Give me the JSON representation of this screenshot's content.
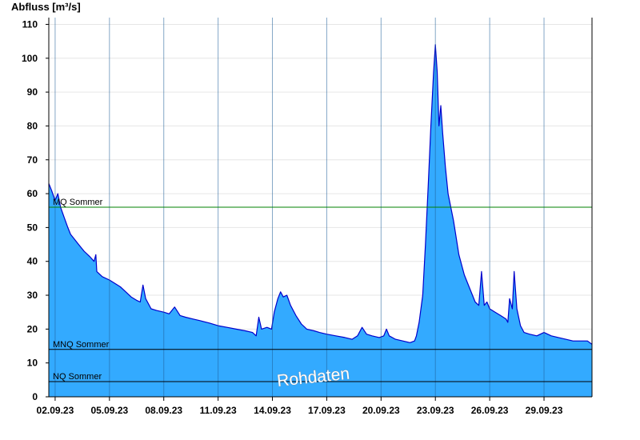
{
  "chart_data": {
    "type": "area",
    "ylabel": "Abfluss [m³/s]",
    "ylim": [
      0,
      112
    ],
    "yticks": [
      0,
      10,
      20,
      30,
      40,
      50,
      60,
      70,
      80,
      90,
      100,
      110
    ],
    "xlim": [
      1.65,
      31.65
    ],
    "xticks": [
      {
        "x": 2,
        "label": "02.09.23"
      },
      {
        "x": 5,
        "label": "05.09.23"
      },
      {
        "x": 8,
        "label": "08.09.23"
      },
      {
        "x": 11,
        "label": "11.09.23"
      },
      {
        "x": 14,
        "label": "14.09.23"
      },
      {
        "x": 17,
        "label": "17.09.23"
      },
      {
        "x": 20,
        "label": "20.09.23"
      },
      {
        "x": 23,
        "label": "23.09.23"
      },
      {
        "x": 26,
        "label": "26.09.23"
      },
      {
        "x": 29,
        "label": "29.09.23"
      }
    ],
    "x_unit": "day of September 2023",
    "series": [
      {
        "values": [
          [
            1.65,
            63
          ],
          [
            1.8,
            61
          ],
          [
            2.0,
            58
          ],
          [
            2.15,
            60
          ],
          [
            2.3,
            56
          ],
          [
            2.5,
            53
          ],
          [
            2.7,
            50
          ],
          [
            2.85,
            48
          ],
          [
            3.0,
            47
          ],
          [
            3.3,
            45
          ],
          [
            3.6,
            43
          ],
          [
            3.9,
            41.5
          ],
          [
            4.15,
            40
          ],
          [
            4.25,
            42
          ],
          [
            4.3,
            37
          ],
          [
            4.6,
            35.5
          ],
          [
            5.0,
            34.5
          ],
          [
            5.3,
            33.5
          ],
          [
            5.6,
            32.5
          ],
          [
            5.9,
            31
          ],
          [
            6.2,
            29.5
          ],
          [
            6.5,
            28.5
          ],
          [
            6.7,
            28
          ],
          [
            6.85,
            33
          ],
          [
            7.0,
            29
          ],
          [
            7.3,
            26
          ],
          [
            7.6,
            25.5
          ],
          [
            8.0,
            25
          ],
          [
            8.3,
            24.5
          ],
          [
            8.6,
            26.5
          ],
          [
            8.9,
            24
          ],
          [
            9.2,
            23.5
          ],
          [
            9.6,
            23
          ],
          [
            10.0,
            22.5
          ],
          [
            10.5,
            21.8
          ],
          [
            11.0,
            21
          ],
          [
            11.5,
            20.5
          ],
          [
            12.0,
            20
          ],
          [
            12.5,
            19.5
          ],
          [
            12.9,
            19
          ],
          [
            13.1,
            18
          ],
          [
            13.25,
            23.5
          ],
          [
            13.4,
            20
          ],
          [
            13.7,
            20.5
          ],
          [
            13.95,
            20
          ],
          [
            14.1,
            25
          ],
          [
            14.3,
            29
          ],
          [
            14.45,
            31
          ],
          [
            14.6,
            29.5
          ],
          [
            14.8,
            30
          ],
          [
            15.0,
            27
          ],
          [
            15.3,
            24
          ],
          [
            15.6,
            21.5
          ],
          [
            15.9,
            20
          ],
          [
            16.3,
            19.5
          ],
          [
            16.6,
            19
          ],
          [
            17.0,
            18.5
          ],
          [
            17.5,
            18
          ],
          [
            18.0,
            17.5
          ],
          [
            18.4,
            17
          ],
          [
            18.7,
            18
          ],
          [
            18.95,
            20.5
          ],
          [
            19.2,
            18.5
          ],
          [
            19.5,
            18
          ],
          [
            19.9,
            17.5
          ],
          [
            20.15,
            18
          ],
          [
            20.3,
            20
          ],
          [
            20.45,
            18
          ],
          [
            20.8,
            17
          ],
          [
            21.2,
            16.5
          ],
          [
            21.6,
            16
          ],
          [
            21.85,
            16.5
          ],
          [
            21.95,
            18
          ],
          [
            22.1,
            22
          ],
          [
            22.3,
            30
          ],
          [
            22.45,
            45
          ],
          [
            22.6,
            62
          ],
          [
            22.75,
            80
          ],
          [
            22.9,
            96
          ],
          [
            23.0,
            104
          ],
          [
            23.1,
            96
          ],
          [
            23.2,
            80
          ],
          [
            23.3,
            86
          ],
          [
            23.4,
            78
          ],
          [
            23.55,
            68
          ],
          [
            23.7,
            60
          ],
          [
            23.85,
            56
          ],
          [
            24.0,
            52
          ],
          [
            24.3,
            42
          ],
          [
            24.6,
            36
          ],
          [
            24.9,
            32
          ],
          [
            25.2,
            28
          ],
          [
            25.4,
            27
          ],
          [
            25.55,
            37
          ],
          [
            25.7,
            27
          ],
          [
            25.85,
            28
          ],
          [
            26.0,
            26
          ],
          [
            26.3,
            25
          ],
          [
            26.6,
            24
          ],
          [
            26.9,
            23
          ],
          [
            27.0,
            22
          ],
          [
            27.1,
            29
          ],
          [
            27.25,
            26
          ],
          [
            27.35,
            37
          ],
          [
            27.5,
            26
          ],
          [
            27.7,
            21
          ],
          [
            27.9,
            19
          ],
          [
            28.2,
            18.5
          ],
          [
            28.6,
            18
          ],
          [
            29.0,
            19
          ],
          [
            29.4,
            18
          ],
          [
            29.8,
            17.5
          ],
          [
            30.2,
            17
          ],
          [
            30.6,
            16.5
          ],
          [
            31.0,
            16.5
          ],
          [
            31.4,
            16.5
          ],
          [
            31.65,
            15.5
          ]
        ]
      }
    ],
    "reference_lines": [
      {
        "label": "MQ Sommer",
        "value": 56,
        "color": "#008000"
      },
      {
        "label": "MNQ Sommer",
        "value": 14,
        "color": "#000000"
      },
      {
        "label": "NQ Sommer",
        "value": 4.5,
        "color": "#000000"
      }
    ],
    "annotations": [
      "Rohdaten"
    ],
    "colors": {
      "fill": "#33aaff",
      "line": "#0000cc",
      "grid": "#e6e6e6"
    },
    "grid": true
  }
}
